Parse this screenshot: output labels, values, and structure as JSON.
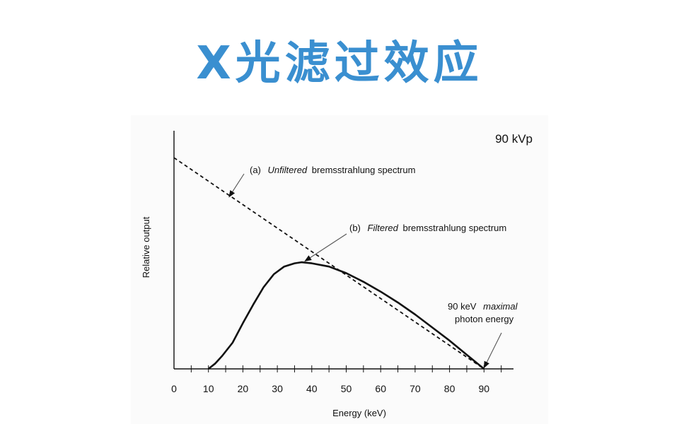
{
  "slide": {
    "title": "X光滤过效应"
  },
  "chart_data": {
    "type": "line",
    "title": "90 kVp",
    "xlabel": "Energy (keV)",
    "ylabel": "Relative output",
    "xlim": [
      0,
      100
    ],
    "ylim": [
      0,
      10
    ],
    "x_ticks": [
      0,
      10,
      20,
      30,
      40,
      50,
      60,
      70,
      80,
      90
    ],
    "x_minor_step": 5,
    "grid": false,
    "series": [
      {
        "name": "Unfiltered bremsstrahlung spectrum",
        "style": "dashed",
        "x": [
          0,
          90
        ],
        "y": [
          9.7,
          0
        ]
      },
      {
        "name": "Filtered bremsstrahlung spectrum",
        "style": "solid",
        "x": [
          10,
          12,
          14,
          17,
          20,
          23,
          26,
          29,
          32,
          35,
          37,
          40,
          45,
          50,
          55,
          60,
          65,
          70,
          75,
          80,
          85,
          90
        ],
        "y": [
          0,
          0.25,
          0.6,
          1.2,
          2.1,
          2.95,
          3.75,
          4.35,
          4.7,
          4.85,
          4.9,
          4.85,
          4.7,
          4.4,
          4.0,
          3.55,
          3.05,
          2.5,
          1.9,
          1.3,
          0.65,
          0
        ]
      }
    ],
    "annotations": [
      {
        "id": "a",
        "label_prefix": "(a)",
        "label_italic": "Unfiltered",
        "label_rest": "bremsstrahlung spectrum",
        "arrow_to": [
          16,
          7.9
        ]
      },
      {
        "id": "b",
        "label_prefix": "(b)",
        "label_italic": "Filtered",
        "label_rest": "bremsstrahlung spectrum",
        "arrow_to": [
          38,
          4.95
        ]
      },
      {
        "id": "c",
        "line1_prefix": "90 keV",
        "line1_italic": "maximal",
        "line2": "photon energy",
        "arrow_to": [
          90,
          0.05
        ]
      }
    ]
  }
}
